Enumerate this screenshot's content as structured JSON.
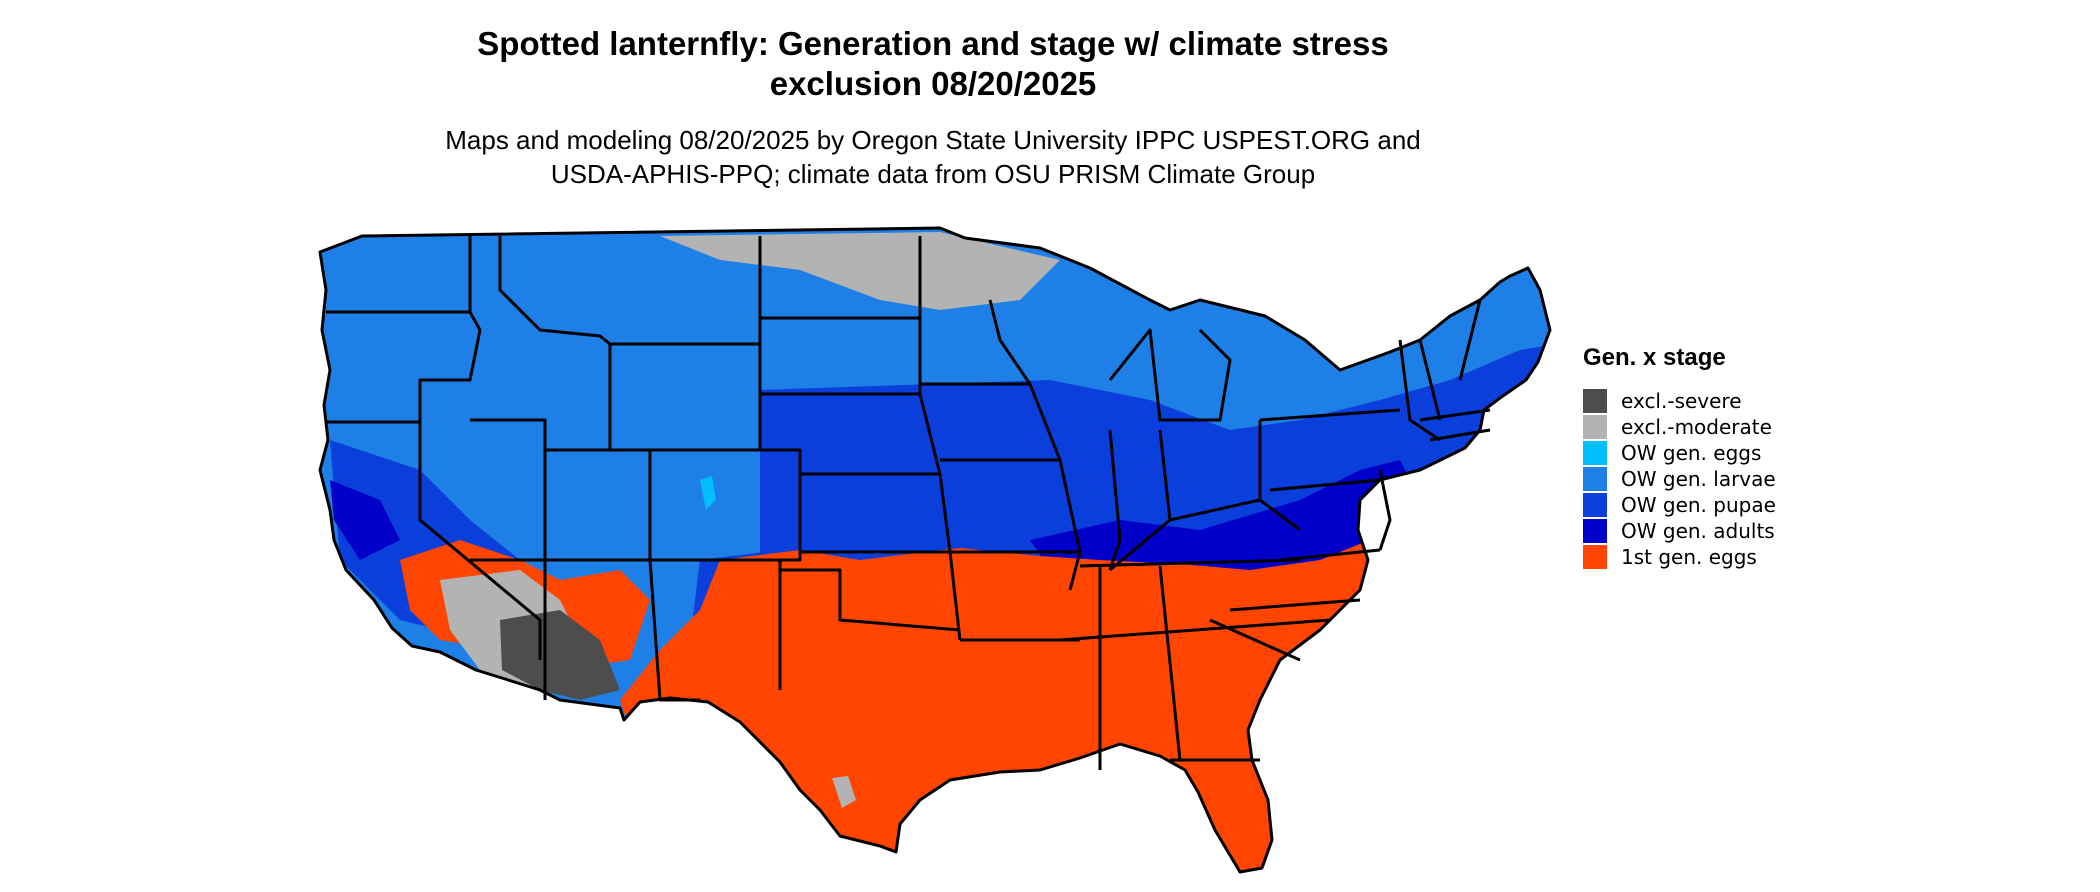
{
  "title_lines": [
    "Spotted lanternfly: Generation and stage w/ climate stress",
    "exclusion 08/20/2025"
  ],
  "subtitle_lines": [
    "Maps and modeling 08/20/2025 by Oregon State University IPPC USPEST.ORG and",
    "USDA-APHIS-PPQ; climate data from OSU PRISM Climate Group"
  ],
  "legend": {
    "title": "Gen. x stage",
    "items": [
      {
        "label": "excl.-severe",
        "color": "#4d4d4d"
      },
      {
        "label": "excl.-moderate",
        "color": "#b3b3b3"
      },
      {
        "label": "OW gen. eggs",
        "color": "#00bfff"
      },
      {
        "label": "OW gen. larvae",
        "color": "#1e7fe6"
      },
      {
        "label": "OW gen. pupae",
        "color": "#0a3fdb"
      },
      {
        "label": "OW gen. adults",
        "color": "#0000c8"
      },
      {
        "label": "1st gen. eggs",
        "color": "#ff4500"
      }
    ]
  },
  "map": {
    "region": "contiguous United States",
    "boundaries": "state outlines"
  }
}
